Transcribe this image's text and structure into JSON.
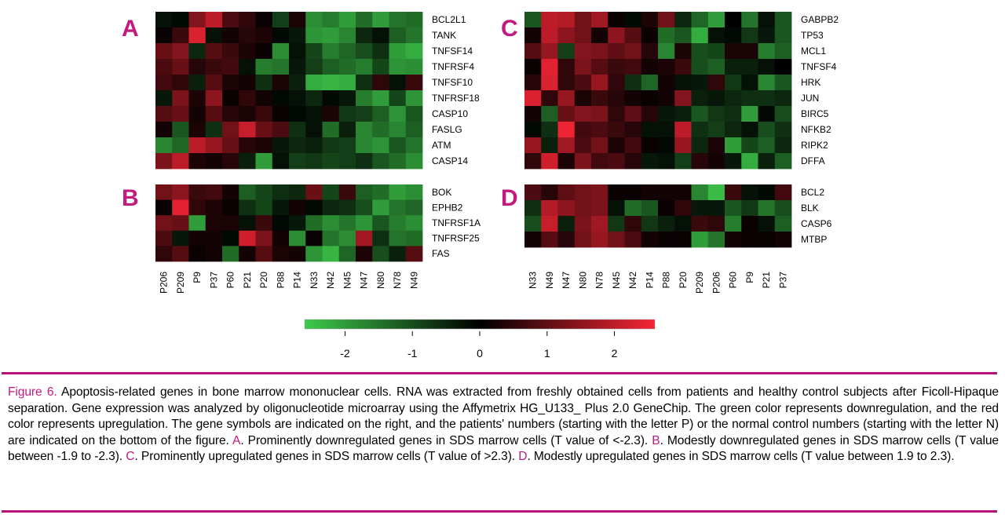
{
  "figure": {
    "panels": [
      {
        "letter": "A",
        "genes": [
          "BCL2L1",
          "TANK",
          "TNFSF14",
          "TNFRSF4",
          "TNFSF10",
          "TNFRSF18",
          "CASP10",
          "FASLG",
          "ATM",
          "CASP14"
        ],
        "samples": [
          "P206",
          "P209",
          "P9",
          "P37",
          "P60",
          "P21",
          "P20",
          "P88",
          "P14",
          "N33",
          "N42",
          "N45",
          "N47",
          "N80",
          "N78",
          "N49"
        ],
        "values": [
          [
            -0.2,
            -0.1,
            1.4,
            2.0,
            0.8,
            0.5,
            0.1,
            -0.8,
            0.3,
            -1.8,
            -1.6,
            -2.0,
            -1.4,
            -2.0,
            -1.5,
            -1.4
          ],
          [
            0.1,
            0.6,
            2.3,
            -0.2,
            0.2,
            0.4,
            0.3,
            -0.1,
            -0.3,
            -1.9,
            -2.0,
            -1.7,
            -0.5,
            -0.2,
            -1.2,
            -1.5
          ],
          [
            1.1,
            1.4,
            -0.5,
            0.9,
            0.6,
            0.3,
            0.1,
            -1.8,
            -0.2,
            -0.9,
            -1.6,
            -1.3,
            -1.0,
            -0.6,
            -2.0,
            -2.2
          ],
          [
            0.8,
            1.1,
            0.4,
            0.6,
            0.7,
            -0.2,
            -1.6,
            -1.5,
            -0.3,
            -0.8,
            -1.2,
            -1.4,
            -1.6,
            -0.9,
            -1.9,
            -1.8
          ],
          [
            0.7,
            0.5,
            -0.4,
            0.9,
            0.3,
            0.2,
            -0.6,
            0.3,
            -0.4,
            -2.2,
            -2.3,
            -2.2,
            -0.6,
            0.5,
            -0.2,
            0.6
          ],
          [
            -0.3,
            1.3,
            0.3,
            1.5,
            0.1,
            0.5,
            0.2,
            -0.1,
            -0.2,
            -0.5,
            -0.1,
            -0.3,
            -1.6,
            -2.0,
            -0.9,
            -1.9
          ],
          [
            0.9,
            1.1,
            0.2,
            0.9,
            0.4,
            0.3,
            0.6,
            0.1,
            -0.1,
            -0.2,
            0.3,
            -0.7,
            -0.8,
            -1.2,
            -1.9,
            -1.1
          ],
          [
            0.2,
            -1.1,
            0.3,
            -0.6,
            1.2,
            2.1,
            1.1,
            0.8,
            -0.6,
            -0.2,
            -1.4,
            -0.4,
            -1.7,
            -1.4,
            -1.7,
            -1.2
          ],
          [
            -1.7,
            -1.3,
            2.0,
            1.6,
            1.1,
            0.4,
            0.3,
            -0.3,
            -0.5,
            -0.4,
            -0.7,
            -0.8,
            -1.7,
            -1.9,
            -1.1,
            -1.5
          ],
          [
            1.3,
            2.0,
            0.3,
            0.2,
            0.4,
            -0.4,
            -2.0,
            -0.2,
            -0.8,
            -0.7,
            -0.9,
            -0.8,
            -0.6,
            -1.1,
            -1.4,
            -1.8
          ]
        ]
      },
      {
        "letter": "B",
        "genes": [
          "BOK",
          "EPHB2",
          "TNFRSF1A",
          "TNFRSF25",
          "FAS"
        ],
        "samples": [
          "P206",
          "P209",
          "P9",
          "P37",
          "P60",
          "P21",
          "P20",
          "P88",
          "P14",
          "N33",
          "N42",
          "N45",
          "N47",
          "N80",
          "N78",
          "N49"
        ],
        "values": [
          [
            1.2,
            1.5,
            0.6,
            0.7,
            0.2,
            -1.2,
            -0.9,
            -0.6,
            -0.5,
            1.1,
            -0.9,
            0.6,
            -1.2,
            -1.4,
            -2.0,
            -1.8
          ],
          [
            0.1,
            2.4,
            0.5,
            0.3,
            0.1,
            -0.6,
            -0.9,
            -0.3,
            0.2,
            -0.1,
            -0.5,
            -0.6,
            -1.0,
            -2.0,
            -1.5,
            -1.3
          ],
          [
            1.2,
            1.1,
            -2.0,
            0.3,
            0.3,
            -0.2,
            0.6,
            -0.1,
            -0.3,
            -1.4,
            -1.8,
            -1.5,
            -1.9,
            -1.1,
            -1.6,
            -1.8
          ],
          [
            0.8,
            -0.3,
            0.2,
            0.2,
            -0.1,
            2.2,
            1.3,
            0.2,
            -1.8,
            0.1,
            -1.5,
            -1.8,
            1.7,
            -0.6,
            -1.5,
            -1.4
          ],
          [
            0.5,
            0.9,
            0.1,
            0.2,
            -1.4,
            0.2,
            0.9,
            0.3,
            0.2,
            -1.9,
            -2.3,
            -1.3,
            0.3,
            -1.0,
            -0.4,
            0.9
          ]
        ]
      },
      {
        "letter": "C",
        "genes": [
          "GABPB2",
          "TP53",
          "MCL1",
          "TNFSF4",
          "HRK",
          "JUN",
          "BIRC5",
          "NFKB2",
          "RIPK2",
          "DFFA"
        ],
        "samples": [
          "N33",
          "N49",
          "N47",
          "N80",
          "N78",
          "N45",
          "N42",
          "P14",
          "P88",
          "P20",
          "P209",
          "P206",
          "P60",
          "P9",
          "P21",
          "P37"
        ],
        "values": [
          [
            -1.1,
            2.0,
            1.9,
            1.2,
            1.7,
            0.1,
            -0.1,
            0.3,
            1.2,
            -0.5,
            -1.3,
            -2.0,
            0.0,
            -1.5,
            -0.2,
            -1.1
          ],
          [
            0.2,
            2.0,
            1.5,
            1.2,
            0.2,
            1.5,
            0.9,
            0.1,
            -1.4,
            -1.1,
            -2.2,
            -0.2,
            -0.1,
            -0.7,
            -0.3,
            -1.1
          ],
          [
            0.9,
            1.6,
            -0.8,
            1.4,
            1.3,
            1.0,
            1.2,
            0.4,
            -1.7,
            0.3,
            -1.0,
            -0.9,
            0.3,
            0.3,
            -1.6,
            -1.2
          ],
          [
            0.1,
            2.4,
            0.5,
            1.3,
            0.9,
            0.6,
            0.7,
            0.2,
            0.3,
            0.6,
            -1.0,
            -1.2,
            -0.4,
            -0.4,
            -0.2,
            0.0
          ],
          [
            0.4,
            2.3,
            0.5,
            0.8,
            1.6,
            0.5,
            -0.6,
            -1.3,
            0.2,
            -0.2,
            -0.3,
            0.5,
            -0.7,
            -0.2,
            -1.7,
            -1.1
          ],
          [
            2.3,
            0.5,
            1.6,
            0.3,
            0.6,
            0.4,
            0.2,
            0.1,
            0.2,
            1.4,
            -0.4,
            -0.3,
            -0.5,
            -0.6,
            -0.6,
            -0.5
          ],
          [
            0.2,
            -1.2,
            1.1,
            1.4,
            1.3,
            0.5,
            1.0,
            0.4,
            -0.3,
            -0.4,
            -1.1,
            -0.7,
            -0.6,
            -2.0,
            -0.1,
            -1.0
          ],
          [
            -0.1,
            -0.6,
            2.5,
            0.7,
            0.8,
            0.6,
            0.4,
            -0.2,
            -0.2,
            2.0,
            -0.6,
            -0.8,
            -0.5,
            -0.2,
            -1.0,
            -0.6
          ],
          [
            1.6,
            -0.4,
            1.7,
            0.8,
            1.2,
            0.3,
            0.7,
            0.1,
            -0.1,
            1.6,
            -0.5,
            0.3,
            -2.0,
            -0.9,
            -1.2,
            -0.5
          ],
          [
            0.5,
            2.2,
            0.3,
            1.3,
            0.7,
            0.8,
            0.4,
            -0.3,
            -0.2,
            -0.8,
            0.4,
            0.2,
            -0.3,
            -2.2,
            -0.4,
            -1.2
          ]
        ]
      },
      {
        "letter": "D",
        "genes": [
          "BCL2",
          "BLK",
          "CASP6",
          "MTBP"
        ],
        "samples": [
          "N33",
          "N49",
          "N47",
          "N80",
          "N78",
          "N45",
          "N42",
          "P14",
          "P88",
          "P20",
          "P209",
          "P206",
          "P60",
          "P9",
          "P21",
          "P37"
        ],
        "values": [
          [
            0.8,
            0.4,
            1.0,
            1.2,
            1.3,
            0.1,
            0.1,
            0.2,
            0.2,
            0.2,
            -1.7,
            -2.4,
            0.6,
            -0.2,
            -0.1,
            0.7
          ],
          [
            -0.6,
            1.9,
            1.5,
            1.2,
            1.3,
            -0.2,
            -1.4,
            -1.1,
            0.1,
            0.5,
            -0.3,
            -0.3,
            -1.1,
            -0.7,
            -1.5,
            -1.0
          ],
          [
            -1.0,
            2.1,
            -0.4,
            1.3,
            1.7,
            -0.7,
            0.5,
            -0.7,
            -0.4,
            -0.2,
            0.6,
            0.5,
            -1.6,
            0.1,
            -0.2,
            -1.2
          ],
          [
            0.2,
            0.9,
            0.4,
            1.2,
            1.6,
            1.2,
            0.8,
            0.2,
            0.1,
            0.1,
            -2.0,
            -1.5,
            0.2,
            0.1,
            0.1,
            0.2
          ]
        ]
      }
    ],
    "color_scale": {
      "low_color": "#3ecb4b",
      "mid_color": "#000000",
      "high_color": "#f52535",
      "min": -2.6,
      "max": 2.6,
      "ticks": [
        "-2",
        "-1",
        "0",
        "1",
        "2"
      ]
    },
    "accent_color": "#c21a7e"
  },
  "caption": {
    "figure_label": "Figure 6.",
    "intro": " Apoptosis-related genes in bone marrow mononuclear cells. RNA was extracted from freshly obtained cells from patients and healthy control subjects after Ficoll-Hipaque separation. Gene expression was analyzed by oligonucleotide microarray using the Affymetrix HG_U133_ Plus 2.0 GeneChip. The green color represents downregulation, and the red color represents upregulation. The gene symbols are indicated on the right, and the patients' numbers (starting with the letter P) or the normal control numbers (starting with the letter N) are indicated on the bottom of the figure. ",
    "label_a": "A",
    "text_a": ". Prominently downregulated genes in SDS marrow cells (T value of <-2.3). ",
    "label_b": "B",
    "text_b": ". Modestly downregulated genes in SDS marrow cells (T value between -1.9 to -2.3). ",
    "label_c": "C",
    "text_c": ". Prominently upregulated genes in SDS marrow cells (T value of >2.3). ",
    "label_d": "D",
    "text_d": ". Modestly upregulated genes in SDS marrow cells (T value between 1.9 to 2.3)."
  }
}
